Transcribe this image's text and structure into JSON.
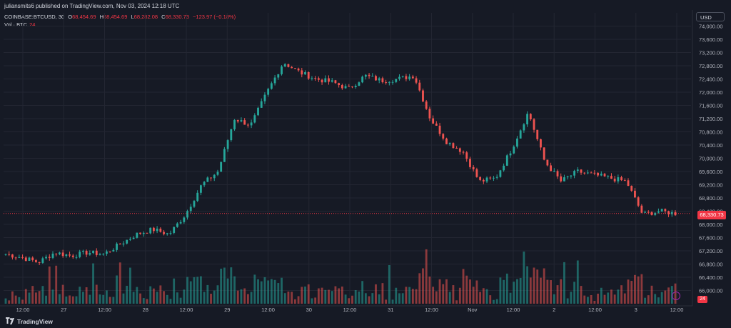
{
  "header": {
    "published": "juliansmits6 published on TradingView.com, Nov 03, 2024 12:18 UTC"
  },
  "legend": {
    "symbol": "COINBASE:BTCUSD, 30",
    "open_label": "O",
    "open": "68,454.69",
    "high_label": "H",
    "high": "68,454.69",
    "low_label": "L",
    "low": "68,282.08",
    "close_label": "C",
    "close": "68,330.73",
    "change": "−123.97 (−0.18%)",
    "volume_label": "Vol · BTC",
    "volume": "24"
  },
  "currency_button": "USD",
  "footer": {
    "brand": "TradingView"
  },
  "colors": {
    "background": "#161a25",
    "up": "#26a69a",
    "down": "#ef5350",
    "price_line": "#f23645",
    "grid": "#232632",
    "text": "#b2b5be"
  },
  "chart_data": {
    "type": "candlestick",
    "symbol": "COINBASE:BTCUSD",
    "interval": "30",
    "currency": "USD",
    "ylim": [
      65600,
      74400
    ],
    "y_ticks": [
      "74,000.00",
      "73,600.00",
      "73,200.00",
      "72,800.00",
      "72,400.00",
      "72,000.00",
      "71,600.00",
      "71,200.00",
      "70,800.00",
      "70,400.00",
      "70,000.00",
      "69,600.00",
      "69,200.00",
      "68,800.00",
      "68,400.00",
      "68,000.00",
      "67,600.00",
      "67,200.00",
      "66,800.00",
      "66,400.00",
      "66,000.00"
    ],
    "x_ticks": [
      "12:00",
      "27",
      "12:00",
      "28",
      "12:00",
      "29",
      "12:00",
      "30",
      "12:00",
      "31",
      "12:00",
      "Nov",
      "12:00",
      "2",
      "12:00",
      "3",
      "12:00"
    ],
    "last_price": "68,330.73",
    "last_volume": "24",
    "price_path": [
      {
        "x": "Oct 26 00:00",
        "close": 67100
      },
      {
        "x": "Oct 26 06:00",
        "close": 67000
      },
      {
        "x": "Oct 26 12:00",
        "close": 66850
      },
      {
        "x": "Oct 26 18:00",
        "close": 67150
      },
      {
        "x": "Oct 27 00:00",
        "close": 67050
      },
      {
        "x": "Oct 27 06:00",
        "close": 67150
      },
      {
        "x": "Oct 27 12:00",
        "close": 67100
      },
      {
        "x": "Oct 27 18:00",
        "close": 67400
      },
      {
        "x": "Oct 28 00:00",
        "close": 67700
      },
      {
        "x": "Oct 28 06:00",
        "close": 67850
      },
      {
        "x": "Oct 28 12:00",
        "close": 67700
      },
      {
        "x": "Oct 28 18:00",
        "close": 68300
      },
      {
        "x": "Oct 29 00:00",
        "close": 69200
      },
      {
        "x": "Oct 29 03:00",
        "close": 69600
      },
      {
        "x": "Oct 29 06:00",
        "close": 71200
      },
      {
        "x": "Oct 29 12:00",
        "close": 71000
      },
      {
        "x": "Oct 29 18:00",
        "close": 72000
      },
      {
        "x": "Oct 29 21:00",
        "close": 72900
      },
      {
        "x": "Oct 30 00:00",
        "close": 72600
      },
      {
        "x": "Oct 30 06:00",
        "close": 72400
      },
      {
        "x": "Oct 30 12:00",
        "close": 72300
      },
      {
        "x": "Oct 30 18:00",
        "close": 72100
      },
      {
        "x": "Oct 31 00:00",
        "close": 72500
      },
      {
        "x": "Oct 31 06:00",
        "close": 72350
      },
      {
        "x": "Oct 31 12:00",
        "close": 72400
      },
      {
        "x": "Oct 31 15:00",
        "close": 72500
      },
      {
        "x": "Oct 31 18:00",
        "close": 71200
      },
      {
        "x": "Nov 01 00:00",
        "close": 70500
      },
      {
        "x": "Nov 01 06:00",
        "close": 70200
      },
      {
        "x": "Nov 01 12:00",
        "close": 69300
      },
      {
        "x": "Nov 01 15:00",
        "close": 69400
      },
      {
        "x": "Nov 01 18:00",
        "close": 70300
      },
      {
        "x": "Nov 01 20:00",
        "close": 71400
      },
      {
        "x": "Nov 01 22:00",
        "close": 69900
      },
      {
        "x": "Nov 02 00:00",
        "close": 69300
      },
      {
        "x": "Nov 02 06:00",
        "close": 69600
      },
      {
        "x": "Nov 02 12:00",
        "close": 69500
      },
      {
        "x": "Nov 02 18:00",
        "close": 69400
      },
      {
        "x": "Nov 02 22:00",
        "close": 69300
      },
      {
        "x": "Nov 03 00:00",
        "close": 68300
      },
      {
        "x": "Nov 03 06:00",
        "close": 68400
      },
      {
        "x": "Nov 03 12:00",
        "close": 68330
      }
    ]
  }
}
